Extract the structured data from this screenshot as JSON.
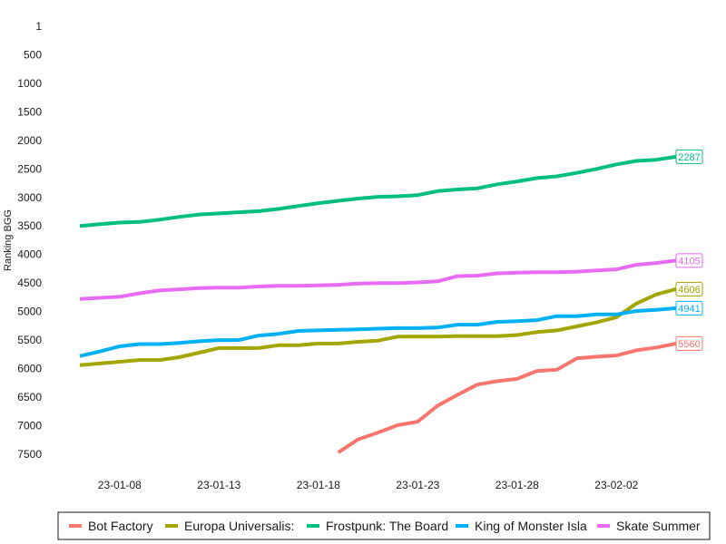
{
  "chart_data": {
    "type": "line",
    "ylabel": "Ranking BGG",
    "y_reversed": true,
    "y_ticks": [
      1,
      500,
      1000,
      1500,
      2000,
      2500,
      3000,
      3500,
      4000,
      4500,
      5000,
      5500,
      6000,
      6500,
      7000,
      7500
    ],
    "ylim": [
      1,
      7800
    ],
    "x_ticks": [
      "23-01-08",
      "23-01-13",
      "23-01-18",
      "23-01-23",
      "23-01-28",
      "23-02-02"
    ],
    "x": [
      "23-01-06",
      "23-01-07",
      "23-01-08",
      "23-01-09",
      "23-01-10",
      "23-01-11",
      "23-01-12",
      "23-01-13",
      "23-01-14",
      "23-01-15",
      "23-01-16",
      "23-01-17",
      "23-01-18",
      "23-01-19",
      "23-01-20",
      "23-01-21",
      "23-01-22",
      "23-01-23",
      "23-01-24",
      "23-01-25",
      "23-01-26",
      "23-01-27",
      "23-01-28",
      "23-01-29",
      "23-01-30",
      "23-01-31",
      "23-02-01",
      "23-02-02",
      "23-02-03",
      "23-02-04",
      "23-02-05"
    ],
    "grid": false,
    "legend_position": "bottom",
    "series": [
      {
        "name": "Bot Factory",
        "color": "#F8766D",
        "end_label": "5560",
        "values": [
          null,
          null,
          null,
          null,
          null,
          null,
          null,
          null,
          null,
          null,
          null,
          null,
          null,
          7470,
          7240,
          7120,
          6990,
          6930,
          6650,
          6460,
          6280,
          6220,
          6180,
          6040,
          6020,
          5820,
          5790,
          5770,
          5680,
          5630,
          5560
        ]
      },
      {
        "name": "Europa Universalis:",
        "color": "#A3A500",
        "end_label": "4606",
        "values": [
          5940,
          5910,
          5880,
          5850,
          5850,
          5800,
          5720,
          5640,
          5640,
          5640,
          5590,
          5590,
          5560,
          5560,
          5530,
          5510,
          5440,
          5440,
          5440,
          5430,
          5430,
          5430,
          5410,
          5360,
          5330,
          5260,
          5190,
          5100,
          4860,
          4700,
          4606
        ]
      },
      {
        "name": "Frostpunk: The Board",
        "color": "#00BF7D",
        "end_label": "2287",
        "values": [
          3500,
          3470,
          3440,
          3430,
          3390,
          3340,
          3300,
          3280,
          3260,
          3240,
          3200,
          3150,
          3100,
          3060,
          3020,
          2990,
          2980,
          2960,
          2890,
          2860,
          2840,
          2770,
          2720,
          2660,
          2630,
          2570,
          2500,
          2420,
          2360,
          2340,
          2287
        ]
      },
      {
        "name": "King of Monster Isla",
        "color": "#00B0F6",
        "end_label": "4941",
        "values": [
          5780,
          5700,
          5610,
          5570,
          5570,
          5550,
          5520,
          5500,
          5500,
          5420,
          5390,
          5340,
          5330,
          5320,
          5310,
          5300,
          5290,
          5290,
          5280,
          5230,
          5230,
          5180,
          5170,
          5150,
          5080,
          5080,
          5050,
          5050,
          4990,
          4970,
          4941
        ]
      },
      {
        "name": "Skate Summer",
        "color": "#E76BF3",
        "end_label": "4105",
        "values": [
          4780,
          4760,
          4740,
          4680,
          4630,
          4610,
          4590,
          4580,
          4580,
          4560,
          4550,
          4550,
          4540,
          4530,
          4510,
          4500,
          4500,
          4490,
          4470,
          4380,
          4370,
          4330,
          4320,
          4310,
          4310,
          4300,
          4280,
          4260,
          4180,
          4150,
          4105
        ]
      }
    ]
  }
}
